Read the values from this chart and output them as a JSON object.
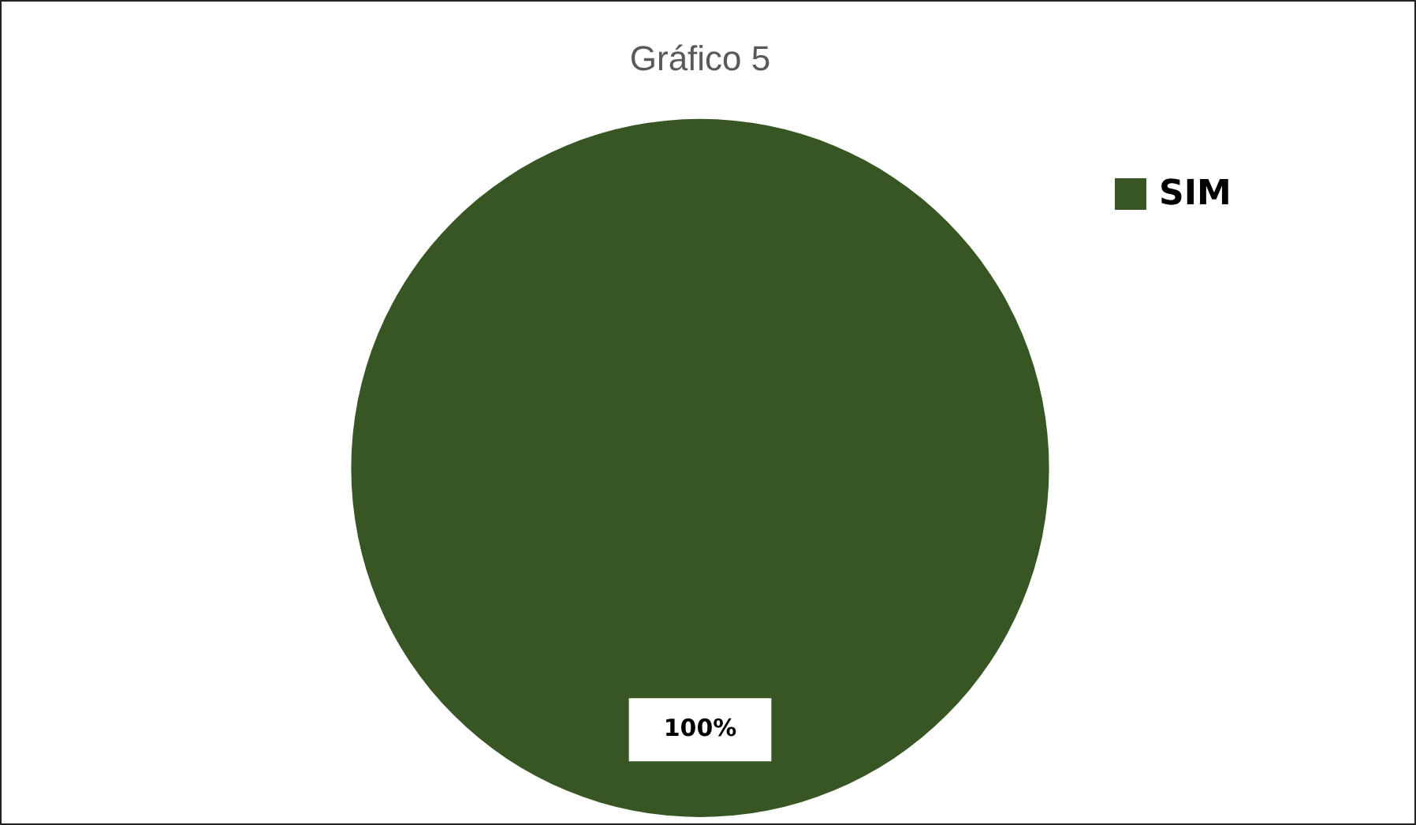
{
  "chart_data": {
    "type": "pie",
    "title": "Gráfico 5",
    "categories": [
      "SIM"
    ],
    "values": [
      100
    ],
    "colors": [
      "#375623"
    ],
    "value_labels": [
      "100%"
    ],
    "legend": "top right"
  }
}
